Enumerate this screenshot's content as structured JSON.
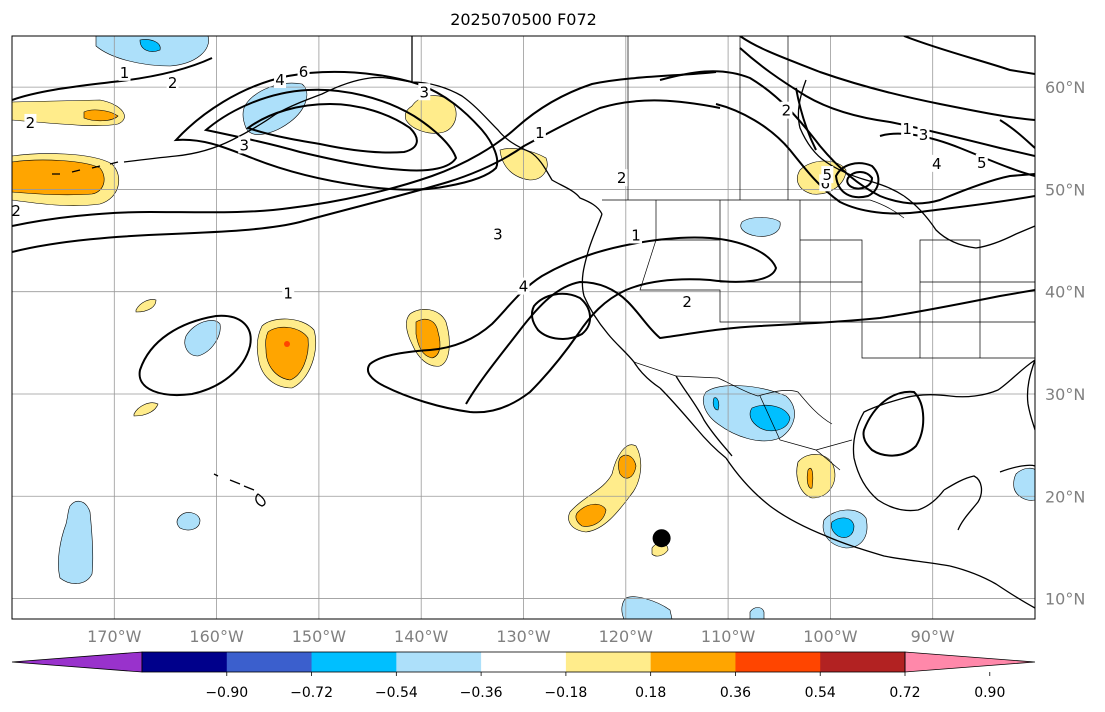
{
  "title": "2025070500 F072",
  "map": {
    "lon_range": [
      -180,
      -80
    ],
    "lat_range": [
      8,
      65
    ],
    "gridlines": true,
    "lon_ticks": [
      {
        "lon": -170,
        "label": "170°W"
      },
      {
        "lon": -160,
        "label": "160°W"
      },
      {
        "lon": -150,
        "label": "150°W"
      },
      {
        "lon": -140,
        "label": "140°W"
      },
      {
        "lon": -130,
        "label": "130°W"
      },
      {
        "lon": -120,
        "label": "120°W"
      },
      {
        "lon": -110,
        "label": "110°W"
      },
      {
        "lon": -100,
        "label": "100°W"
      },
      {
        "lon": -90,
        "label": "90°W"
      }
    ],
    "lat_ticks": [
      {
        "lat": 60,
        "label": "60°N"
      },
      {
        "lat": 50,
        "label": "50°N"
      },
      {
        "lat": 40,
        "label": "40°N"
      },
      {
        "lat": 30,
        "label": "30°N"
      },
      {
        "lat": 20,
        "label": "20°N"
      },
      {
        "lat": 10,
        "label": "10°N"
      }
    ],
    "contour_labels": [
      {
        "text": "1",
        "lon": -128.4,
        "lat": 55.5
      },
      {
        "text": "1",
        "lon": -169,
        "lat": 61.4
      },
      {
        "text": "2",
        "lon": -114,
        "lat": 39
      },
      {
        "text": "1",
        "lon": -153,
        "lat": 39.8
      },
      {
        "text": "3",
        "lon": -139.7,
        "lat": 59.5
      },
      {
        "text": "6",
        "lon": -151.5,
        "lat": 61.5
      },
      {
        "text": "4",
        "lon": -130,
        "lat": 40.5
      },
      {
        "text": "3",
        "lon": -132.5,
        "lat": 45.6
      },
      {
        "text": "2",
        "lon": -104.3,
        "lat": 57.7
      },
      {
        "text": "1",
        "lon": -119,
        "lat": 45.5
      },
      {
        "text": "2",
        "lon": -120.4,
        "lat": 51.1
      },
      {
        "text": "1",
        "lon": -92.5,
        "lat": 55.9
      },
      {
        "text": "3",
        "lon": -90.9,
        "lat": 55.3
      },
      {
        "text": "4",
        "lon": -153.8,
        "lat": 60.7
      },
      {
        "text": "5",
        "lon": -85.2,
        "lat": 52.6
      },
      {
        "text": "4",
        "lon": -89.6,
        "lat": 52.5
      },
      {
        "text": "6",
        "lon": -100.5,
        "lat": 50.6
      },
      {
        "text": "5",
        "lon": -100.3,
        "lat": 51.4
      },
      {
        "text": "2",
        "lon": -164.3,
        "lat": 60.4
      },
      {
        "text": "2",
        "lon": -178.2,
        "lat": 56.5
      },
      {
        "text": "3",
        "lon": -157.3,
        "lat": 54.3
      },
      {
        "text": "2",
        "lon": -179.6,
        "lat": 47.9
      }
    ],
    "markers": [
      {
        "name": "black-dot",
        "lon": -116.5,
        "lat": 15.9
      }
    ]
  },
  "colorbar": {
    "ticks": [
      "−0.90",
      "−0.72",
      "−0.54",
      "−0.36",
      "−0.18",
      "0.18",
      "0.36",
      "0.54",
      "0.72",
      "0.90"
    ],
    "colors": [
      "#9932CC",
      "#00008B",
      "#3B5FCD",
      "#00BFFF",
      "#ADE0FA",
      "#FFFFFF",
      "#FFEC8B",
      "#FFA500",
      "#FF4500",
      "#B22222",
      "#FF88AA"
    ]
  }
}
